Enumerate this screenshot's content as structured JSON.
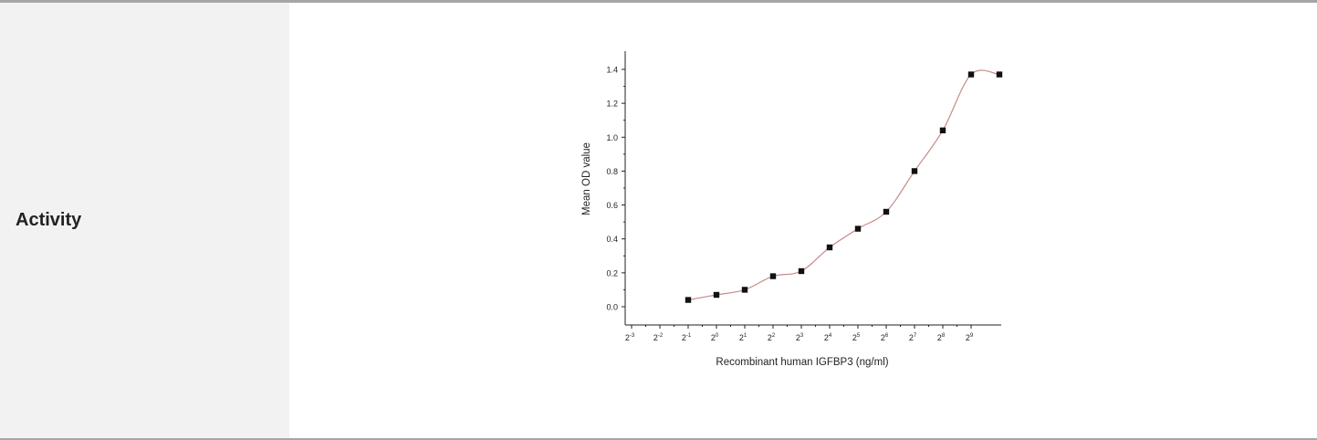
{
  "row": {
    "label": "Activity"
  },
  "chart_data": {
    "type": "scatter",
    "xlabel": "Recombinant human IGFBP3 (ng/ml)",
    "ylabel": "Mean OD value",
    "x_scale": "log2",
    "x_exponents": [
      -3,
      -2,
      -1,
      0,
      1,
      2,
      3,
      4,
      5,
      6,
      7,
      8,
      9
    ],
    "ylim": [
      0,
      1.4
    ],
    "yticks": [
      "0.0",
      "0.2",
      "0.4",
      "0.6",
      "0.8",
      "1.0",
      "1.2",
      "1.4"
    ],
    "grid": false,
    "series": [
      {
        "x": [
          0.5,
          1,
          2,
          4,
          8,
          16,
          32,
          64,
          128,
          256,
          512,
          1024
        ],
        "y": [
          0.04,
          0.07,
          0.1,
          0.18,
          0.21,
          0.35,
          0.46,
          0.56,
          0.8,
          1.04,
          1.37,
          1.37
        ],
        "marker": "square",
        "marker_color": "#111111",
        "line_color": "#c98a8a"
      }
    ]
  }
}
